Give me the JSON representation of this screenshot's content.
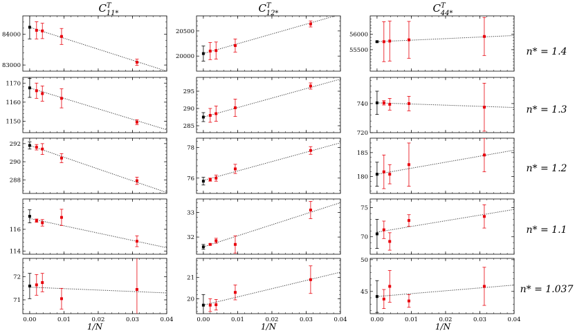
{
  "figure": {
    "column_titles": [
      {
        "main": "C",
        "sup": "T",
        "sub": "11*"
      },
      {
        "main": "C",
        "sup": "T",
        "sub": "12*"
      },
      {
        "main": "C",
        "sup": "T",
        "sub": "44*"
      }
    ],
    "row_labels": [
      "n* = 1.4",
      "n* = 1.3",
      "n* = 1.2",
      "n* = 1.1",
      "n* = 1.037"
    ],
    "xlabel": "1/N",
    "colors": {
      "extrapolated": "#000000",
      "simulation": "#e8000b",
      "fit": "#333333"
    }
  },
  "chart_data": {
    "type": "scatter",
    "xlim": [
      -0.002,
      0.04
    ],
    "xticks": [
      0.0,
      0.01,
      0.02,
      0.03,
      0.04
    ],
    "xtick_labels": [
      "0.00",
      "0.01",
      "0.02",
      "0.03",
      "0.04"
    ],
    "sim_x": [
      0.002,
      0.0037,
      0.0093,
      0.0313
    ],
    "panels": [
      {
        "row": 0,
        "col": 0,
        "ylim": [
          82800,
          84600
        ],
        "yticks": [
          83000,
          84000
        ],
        "ytick_labels": [
          "83000",
          "84000"
        ],
        "extrap": {
          "y": 84230,
          "err": 380
        },
        "sim": [
          84130,
          84110,
          83930,
          83090
        ],
        "err": [
          280,
          250,
          260,
          100
        ],
        "fit": [
          84230,
          82800
        ]
      },
      {
        "row": 0,
        "col": 1,
        "ylim": [
          19700,
          20800
        ],
        "yticks": [
          20000,
          20500
        ],
        "ytick_labels": [
          "20000",
          "20500"
        ],
        "extrap": {
          "y": 20050,
          "err": 150
        },
        "sim": [
          20100,
          20110,
          20210,
          20640
        ],
        "err": [
          170,
          170,
          130,
          60
        ],
        "fit": [
          20050,
          20830
        ]
      },
      {
        "row": 0,
        "col": 2,
        "ylim": [
          54800,
          56600
        ],
        "yticks": [
          55500,
          56000
        ],
        "ytick_labels": [
          "55500",
          "56000"
        ],
        "extrap": {
          "y": 55760,
          "err": 20
        },
        "sim": [
          55760,
          55780,
          55820,
          55930
        ],
        "err": [
          650,
          650,
          600,
          620
        ],
        "fit": [
          55760,
          55960
        ]
      },
      {
        "row": 1,
        "col": 0,
        "ylim": [
          1144,
          1173
        ],
        "yticks": [
          1150,
          1160,
          1170
        ],
        "ytick_labels": [
          "1150",
          "1160",
          "1170"
        ],
        "extrap": {
          "y": 1167.5,
          "err": 5
        },
        "sim": [
          1166,
          1164.5,
          1162,
          1149.5
        ],
        "err": [
          4,
          4,
          5,
          1.3
        ],
        "fit": [
          1167.5,
          1145.5
        ]
      },
      {
        "row": 1,
        "col": 1,
        "ylim": [
          283,
          299
        ],
        "yticks": [
          285,
          290,
          295
        ],
        "ytick_labels": [
          "285",
          "290",
          "295"
        ],
        "extrap": {
          "y": 287.5,
          "err": 1.3
        },
        "sim": [
          288,
          288.5,
          290.2,
          296.5
        ],
        "err": [
          2,
          2.2,
          2.5,
          0.9
        ],
        "fit": [
          287.5,
          298.5
        ]
      },
      {
        "row": 1,
        "col": 2,
        "ylim": [
          720,
          758
        ],
        "yticks": [
          720,
          740
        ],
        "ytick_labels": [
          "720",
          "740"
        ],
        "extrap": {
          "y": 740.5,
          "err": 8
        },
        "sim": [
          740.5,
          739.5,
          740,
          737.5
        ],
        "err": [
          1.5,
          4,
          5,
          16.5
        ],
        "fit": [
          740.5,
          737.3
        ]
      },
      {
        "row": 2,
        "col": 0,
        "ylim": [
          286.5,
          292.6
        ],
        "yticks": [
          288,
          290,
          292
        ],
        "ytick_labels": [
          "288",
          "290",
          "292"
        ],
        "extrap": {
          "y": 291.8,
          "err": 0.4
        },
        "sim": [
          291.6,
          291.4,
          290.4,
          287.9
        ],
        "err": [
          0.3,
          0.6,
          0.5,
          0.4
        ],
        "fit": [
          291.8,
          286.6
        ]
      },
      {
        "row": 2,
        "col": 1,
        "ylim": [
          75,
          78.6
        ],
        "yticks": [
          76,
          78
        ],
        "ytick_labels": [
          "76",
          "78"
        ],
        "extrap": {
          "y": 75.8,
          "err": 0.25
        },
        "sim": [
          75.9,
          76.0,
          76.6,
          77.8
        ],
        "err": [
          0.1,
          0.2,
          0.3,
          0.25
        ],
        "fit": [
          75.85,
          78.3
        ]
      },
      {
        "row": 2,
        "col": 2,
        "ylim": [
          176.5,
          188
        ],
        "yticks": [
          180,
          185
        ],
        "ytick_labels": [
          "180",
          "185"
        ],
        "extrap": {
          "y": 180.5,
          "err": 2.5
        },
        "sim": [
          181,
          180.5,
          182.5,
          184.5
        ],
        "err": [
          3.5,
          2,
          4.5,
          3.5
        ],
        "fit": [
          180.5,
          185.5
        ]
      },
      {
        "row": 3,
        "col": 0,
        "ylim": [
          113.7,
          118.8
        ],
        "yticks": [
          114,
          116
        ],
        "ytick_labels": [
          "114",
          "116"
        ],
        "extrap": {
          "y": 117.2,
          "err": 0.6
        },
        "sim": [
          116.8,
          116.6,
          117.1,
          114.9
        ],
        "err": [
          0.15,
          0.3,
          0.75,
          0.5
        ],
        "fit": [
          117.0,
          114.3
        ]
      },
      {
        "row": 3,
        "col": 1,
        "ylim": [
          31.3,
          33.55
        ],
        "yticks": [
          32,
          33
        ],
        "ytick_labels": [
          "32",
          "33"
        ],
        "extrap": {
          "y": 31.6,
          "err": 0.1
        },
        "sim": [
          31.7,
          31.85,
          31.7,
          33.1
        ],
        "err": [
          0.03,
          0.1,
          0.35,
          0.35
        ],
        "fit": [
          31.6,
          33.4
        ]
      },
      {
        "row": 3,
        "col": 2,
        "ylim": [
          67,
          76.5
        ],
        "yticks": [
          70,
          75
        ],
        "ytick_labels": [
          "70",
          "75"
        ],
        "extrap": {
          "y": 70.5,
          "err": 2.5
        },
        "sim": [
          71.2,
          69.2,
          72.8,
          73.5
        ],
        "err": [
          1.5,
          1.5,
          1,
          2
        ],
        "fit": [
          70.8,
          74.7
        ]
      },
      {
        "row": 4,
        "col": 0,
        "ylim": [
          70.4,
          72.8
        ],
        "yticks": [
          71,
          72
        ],
        "ytick_labels": [
          "71",
          "72"
        ],
        "extrap": {
          "y": 71.6,
          "err": 0.55
        },
        "sim": [
          71.65,
          71.75,
          71.05,
          71.45
        ],
        "err": [
          0.45,
          0.4,
          0.45,
          1.4
        ],
        "fit": [
          71.55,
          71.3
        ]
      },
      {
        "row": 4,
        "col": 1,
        "ylim": [
          19.3,
          21.9
        ],
        "yticks": [
          20,
          21
        ],
        "ytick_labels": [
          "20",
          "21"
        ],
        "extrap": {
          "y": 19.7,
          "err": 0.5
        },
        "sim": [
          19.7,
          19.72,
          20.3,
          20.9
        ],
        "err": [
          0.3,
          0.25,
          0.35,
          0.65
        ],
        "fit": [
          19.7,
          21.25
        ]
      },
      {
        "row": 4,
        "col": 2,
        "ylim": [
          41.5,
          50.2
        ],
        "yticks": [
          45,
          50
        ],
        "ytick_labels": [
          "45",
          "50"
        ],
        "extrap": {
          "y": 44.2,
          "err": 2.5
        },
        "sim": [
          43.8,
          45.8,
          43.5,
          45.8
        ],
        "err": [
          1.5,
          2.5,
          1,
          3
        ],
        "fit": [
          44.2,
          46
        ]
      }
    ]
  }
}
